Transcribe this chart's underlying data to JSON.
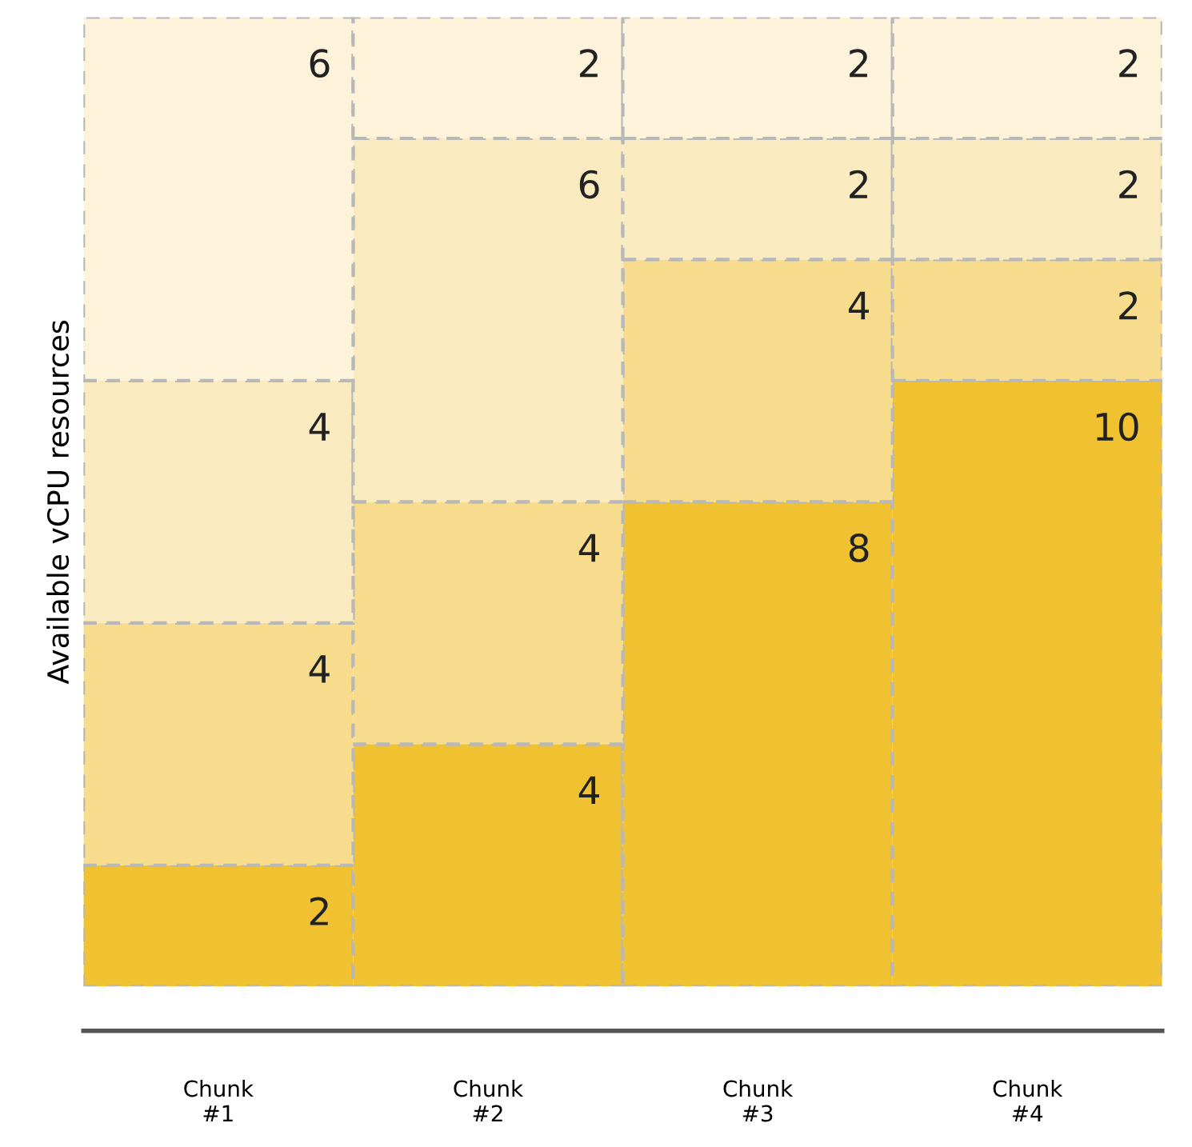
{
  "chart_data": {
    "type": "bar",
    "stacked": true,
    "data_labels": true,
    "ylabel": "Available vCPU resources",
    "categories": [
      "Chunk\n#1",
      "Chunk\n#2",
      "Chunk\n#3",
      "Chunk\n#4"
    ],
    "series": [
      {
        "color": "#f0c232",
        "values": [
          2,
          4,
          8,
          10
        ]
      },
      {
        "color": "#f8dc8e",
        "values": [
          4,
          4,
          4,
          2
        ]
      },
      {
        "color": "#faeabf",
        "values": [
          4,
          6,
          2,
          2
        ]
      },
      {
        "color": "#fcf3da",
        "values": [
          6,
          2,
          2,
          2
        ]
      }
    ],
    "grid": false,
    "legend": false
  }
}
